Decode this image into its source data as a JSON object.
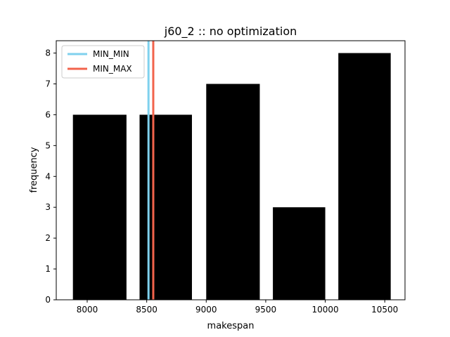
{
  "chart_data": {
    "type": "bar",
    "title": "j60_2 :: no optimization",
    "xlabel": "makespan",
    "ylabel": "frequency",
    "xlim": [
      7740,
      10670
    ],
    "ylim": [
      0,
      8.4
    ],
    "xticks": [
      8000,
      8500,
      9000,
      9500,
      10000,
      10500
    ],
    "yticks": [
      0,
      1,
      2,
      3,
      4,
      5,
      6,
      7,
      8
    ],
    "bar_color": "#000000",
    "bars": [
      {
        "x0": 7880,
        "x1": 8330,
        "value": 6
      },
      {
        "x0": 8440,
        "x1": 8880,
        "value": 6
      },
      {
        "x0": 9000,
        "x1": 9450,
        "value": 7
      },
      {
        "x0": 9560,
        "x1": 10000,
        "value": 3
      },
      {
        "x0": 10110,
        "x1": 10550,
        "value": 8
      }
    ],
    "vlines": [
      {
        "name": "MIN_MIN",
        "x": 8515,
        "color": "#7fd1ee"
      },
      {
        "name": "MIN_MAX",
        "x": 8555,
        "color": "#f2634c"
      }
    ],
    "legend": "top-left",
    "grid": false
  }
}
